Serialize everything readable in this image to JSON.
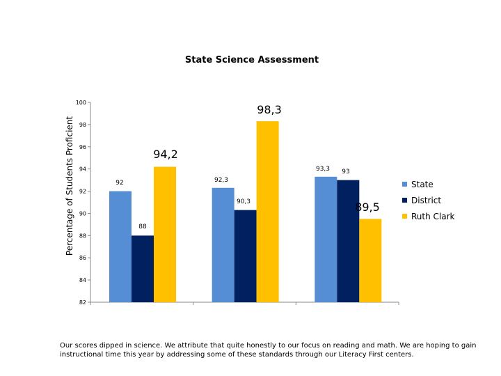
{
  "chart_data": {
    "type": "bar",
    "title": "State Science Assessment",
    "xlabel": "",
    "ylabel": "Percentage of Students Proficient",
    "ylim": [
      82,
      100
    ],
    "yticks": [
      82,
      84,
      86,
      88,
      90,
      92,
      94,
      96,
      98,
      100
    ],
    "ytick_labels": [
      "82",
      "84",
      "86",
      "88",
      "90",
      "92",
      "94",
      "96",
      "98",
      "100"
    ],
    "categories": [
      "",
      "",
      ""
    ],
    "series": [
      {
        "name": "State",
        "color": "#558ed5",
        "values": [
          92,
          92.3,
          93.3
        ],
        "labels": [
          "92",
          "92,3",
          "93,3"
        ]
      },
      {
        "name": "District",
        "color": "#002060",
        "values": [
          88,
          90.3,
          93
        ],
        "labels": [
          "88",
          "90,3",
          "93"
        ]
      },
      {
        "name": "Ruth Clark",
        "color": "#ffc000",
        "values": [
          94.2,
          98.3,
          89.5
        ],
        "labels": [
          "94,2",
          "98,3",
          "89,5"
        ]
      }
    ],
    "legend": "right",
    "grid": false
  },
  "caption": "Our scores dipped in science. We attribute that quite honestly to our focus on reading and math. We are hoping to gain instructional time this year by addressing some of these standards through our Literacy First centers."
}
